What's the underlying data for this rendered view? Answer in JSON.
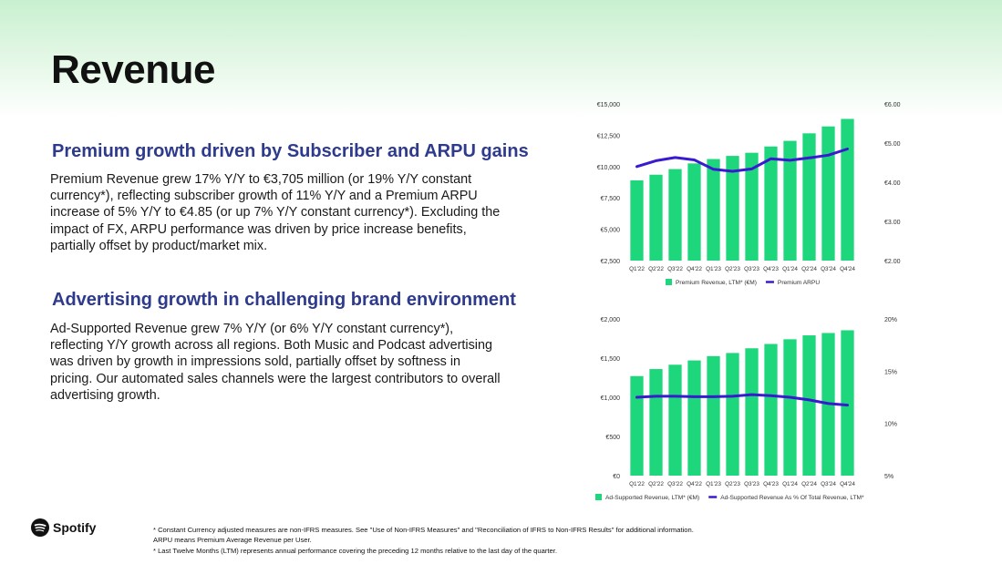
{
  "page": {
    "title": "Revenue",
    "premium_heading": "Premium growth driven by Subscriber and ARPU gains",
    "premium_text": "Premium Revenue grew 17% Y/Y to €3,705 million (or 19% Y/Y constant currency*), reflecting subscriber growth of 11% Y/Y and a Premium ARPU increase of 5% Y/Y to €4.85 (or up 7% Y/Y constant currency*). Excluding the impact of FX, ARPU performance was driven by price increase benefits, partially offset by product/market mix.",
    "ad_heading": "Advertising growth in challenging brand environment",
    "ad_text": "Ad-Supported Revenue grew 7% Y/Y (or 6% Y/Y constant currency*), reflecting Y/Y growth across all regions. Both Music and Podcast advertising was driven by growth in impressions sold, partially offset by softness in pricing. Our automated sales channels were the largest contributors to overall advertising growth.",
    "logo_text": "Spotify",
    "footnotes": [
      "* Constant Currency adjusted measures are non-IFRS measures. See \"Use of Non-IFRS Measures\" and \"Reconciliation of IFRS to Non-IFRS Results\" for additional information.",
      "ARPU means Premium Average Revenue per User.",
      "* Last Twelve Months (LTM) represents annual performance covering the preceding 12 months relative to the last day of the quarter."
    ]
  },
  "colors": {
    "bar": "#1ed67c",
    "line": "#3a1ad0",
    "heading": "#2e3a8c",
    "axis_text": "#333333"
  },
  "chart_data": [
    {
      "type": "bar",
      "categories": [
        "Q1'22",
        "Q2'22",
        "Q3'22",
        "Q4'22",
        "Q1'23",
        "Q2'23",
        "Q3'23",
        "Q4'23",
        "Q1'24",
        "Q2'24",
        "Q3'24",
        "Q4'24"
      ],
      "series": [
        {
          "name": "Premium Revenue, LTM* (€M)",
          "type": "bar",
          "axis": "left",
          "values": [
            8900,
            9350,
            9800,
            10250,
            10600,
            10850,
            11100,
            11600,
            12050,
            12650,
            13200,
            13800
          ]
        },
        {
          "name": "Premium ARPU",
          "type": "line",
          "axis": "right",
          "values": [
            4.4,
            4.55,
            4.63,
            4.57,
            4.33,
            4.28,
            4.34,
            4.6,
            4.56,
            4.62,
            4.69,
            4.85
          ]
        }
      ],
      "ylim": [
        2500,
        15000
      ],
      "yticks": [
        "€2,500",
        "€5,000",
        "€7,500",
        "€10,000",
        "€12,500",
        "€15,000"
      ],
      "y2lim": [
        2.0,
        6.0
      ],
      "y2ticks": [
        "€2.00",
        "€3.00",
        "€4.00",
        "€5.00",
        "€6.00"
      ],
      "legend": "bottom"
    },
    {
      "type": "bar",
      "categories": [
        "Q1'22",
        "Q2'22",
        "Q3'22",
        "Q4'22",
        "Q1'23",
        "Q2'23",
        "Q3'23",
        "Q4'23",
        "Q1'24",
        "Q2'24",
        "Q3'24",
        "Q4'24"
      ],
      "series": [
        {
          "name": "Ad-Supported Revenue, LTM* (€M)",
          "type": "bar",
          "axis": "left",
          "values": [
            1270,
            1360,
            1415,
            1470,
            1525,
            1565,
            1625,
            1680,
            1740,
            1790,
            1820,
            1855
          ]
        },
        {
          "name": "Ad-Supported Revenue As % Of Total Revenue, LTM*",
          "type": "line",
          "axis": "right",
          "values": [
            12.5,
            12.6,
            12.6,
            12.55,
            12.55,
            12.6,
            12.75,
            12.65,
            12.5,
            12.25,
            11.9,
            11.75
          ]
        }
      ],
      "ylim": [
        0,
        2000
      ],
      "yticks": [
        "€0",
        "€500",
        "€1,000",
        "€1,500",
        "€2,000"
      ],
      "y2lim": [
        5,
        20
      ],
      "y2ticks": [
        "5%",
        "10%",
        "15%",
        "20%"
      ],
      "legend": "bottom"
    }
  ]
}
